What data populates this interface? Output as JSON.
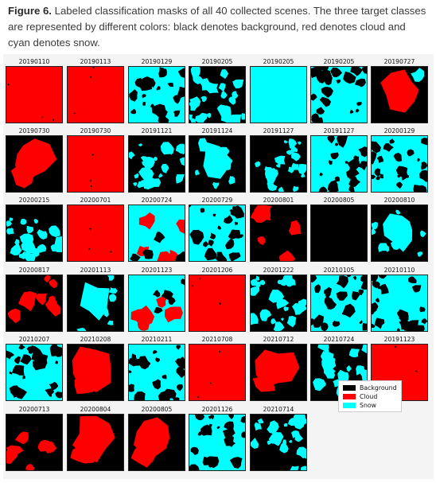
{
  "caption": {
    "label": "Figure 6.",
    "text": " Labeled classification masks of all 40 collected scenes. The three target classes are represented by different colors: black denotes background, red denotes cloud and cyan denotes snow."
  },
  "colors": {
    "background": "#000000",
    "cloud": "#ff0000",
    "snow": "#00ffff"
  },
  "legend": [
    {
      "name": "Background",
      "color": "#000000"
    },
    {
      "name": "Cloud",
      "color": "#ff0000"
    },
    {
      "name": "Snow",
      "color": "#00ffff"
    }
  ],
  "scenes": [
    {
      "date": "20190110",
      "pattern": "cloud"
    },
    {
      "date": "20190113",
      "pattern": "cloud"
    },
    {
      "date": "20190129",
      "pattern": "snow-mix"
    },
    {
      "date": "20190205",
      "pattern": "dark-mix"
    },
    {
      "date": "20190205",
      "pattern": "snow"
    },
    {
      "date": "20190205",
      "pattern": "snow-mix"
    },
    {
      "date": "20190727",
      "pattern": "cloud-blob"
    },
    {
      "date": "20190730",
      "pattern": "cloud-dark"
    },
    {
      "date": "20190730",
      "pattern": "cloud"
    },
    {
      "date": "20191121",
      "pattern": "dark-mix"
    },
    {
      "date": "20191124",
      "pattern": "snow-blob"
    },
    {
      "date": "20191127",
      "pattern": "dark-mix"
    },
    {
      "date": "20191127",
      "pattern": "snow-mix"
    },
    {
      "date": "20200129",
      "pattern": "snow-mix"
    },
    {
      "date": "20200215",
      "pattern": "dark-mix"
    },
    {
      "date": "20200701",
      "pattern": "cloud"
    },
    {
      "date": "20200724",
      "pattern": "cloud-snow"
    },
    {
      "date": "20200729",
      "pattern": "snow-mix"
    },
    {
      "date": "20200801",
      "pattern": "dark-cloud"
    },
    {
      "date": "20200805",
      "pattern": "dark"
    },
    {
      "date": "20200810",
      "pattern": "snow-blob"
    },
    {
      "date": "20200817",
      "pattern": "dark-cloud"
    },
    {
      "date": "20201113",
      "pattern": "snow-blob"
    },
    {
      "date": "20201123",
      "pattern": "cloud-snow"
    },
    {
      "date": "20201206",
      "pattern": "cloud"
    },
    {
      "date": "20201222",
      "pattern": "dark-mix"
    },
    {
      "date": "20210105",
      "pattern": "snow-mix"
    },
    {
      "date": "20210110",
      "pattern": "snow-mix"
    },
    {
      "date": "20210207",
      "pattern": "snow-mix"
    },
    {
      "date": "20210208",
      "pattern": "cloud-dark"
    },
    {
      "date": "20210211",
      "pattern": "snow-mix"
    },
    {
      "date": "20210708",
      "pattern": "cloud"
    },
    {
      "date": "20210712",
      "pattern": "cloud-dark"
    },
    {
      "date": "20210724",
      "pattern": "dark-mix"
    },
    {
      "date": "20191123",
      "pattern": "cloud"
    },
    {
      "date": "20200713",
      "pattern": "dark-cloud"
    },
    {
      "date": "20200804",
      "pattern": "cloud-dark"
    },
    {
      "date": "20200805",
      "pattern": "cloud-dark"
    },
    {
      "date": "20201126",
      "pattern": "snow-mix"
    },
    {
      "date": "20210714",
      "pattern": "dark-mix"
    }
  ]
}
